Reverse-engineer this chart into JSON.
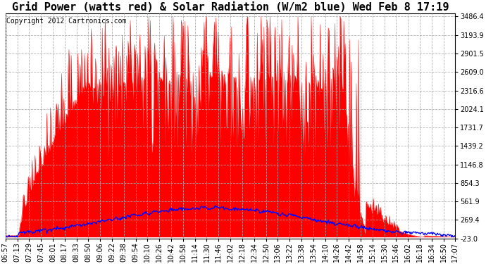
{
  "title": "Grid Power (watts red) & Solar Radiation (W/m2 blue) Wed Feb 8 17:19",
  "copyright": "Copyright 2012 Cartronics.com",
  "ymin": -23.0,
  "ymax": 3486.4,
  "yticks": [
    3486.4,
    3193.9,
    2901.5,
    2609.0,
    2316.6,
    2024.1,
    1731.7,
    1439.2,
    1146.8,
    854.3,
    561.9,
    269.4,
    -23.0
  ],
  "xtick_labels": [
    "06:57",
    "07:13",
    "07:29",
    "07:45",
    "08:01",
    "08:17",
    "08:33",
    "08:50",
    "09:06",
    "09:22",
    "09:38",
    "09:54",
    "10:10",
    "10:26",
    "10:42",
    "10:58",
    "11:14",
    "11:30",
    "11:46",
    "12:02",
    "12:18",
    "12:34",
    "12:50",
    "13:06",
    "13:22",
    "13:38",
    "13:54",
    "14:10",
    "14:26",
    "14:42",
    "14:58",
    "15:14",
    "15:30",
    "15:46",
    "16:02",
    "16:18",
    "16:34",
    "16:50",
    "17:07"
  ],
  "bg_color": "#ffffff",
  "grid_color": "#aaaaaa",
  "area_color": "#ff0000",
  "line_color": "#0000ff",
  "title_fontsize": 11,
  "copyright_fontsize": 7,
  "tick_fontsize": 7
}
